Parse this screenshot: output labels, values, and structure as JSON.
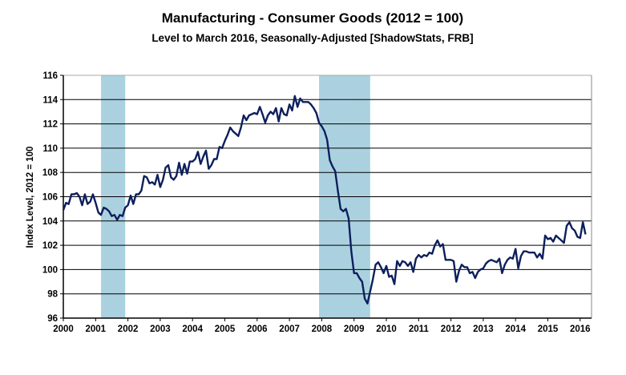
{
  "chart_data": {
    "type": "line",
    "title": "Manufacturing - Consumer Goods (2012 = 100)",
    "subtitle": "Level to March 2016, Seasonally-Adjusted [ShadowStats, FRB]",
    "xlabel": "",
    "ylabel": "Index Level, 2012 = 100",
    "xlim": [
      2000,
      2016.35
    ],
    "ylim": [
      96,
      116
    ],
    "x_ticks": [
      "2000",
      "2001",
      "2002",
      "2003",
      "2004",
      "2005",
      "2006",
      "2007",
      "2008",
      "2009",
      "2010",
      "2011",
      "2012",
      "2013",
      "2014",
      "2015",
      "2016"
    ],
    "y_ticks": [
      "96",
      "98",
      "100",
      "102",
      "104",
      "106",
      "108",
      "110",
      "112",
      "114",
      "116"
    ],
    "grid": "horizontal",
    "line_color": "#0d1f5c",
    "recession_color": "#a6d4dc",
    "recessions": [
      [
        "2001-03",
        "2001-11"
      ],
      [
        "2007-12",
        "2009-06"
      ]
    ],
    "series": [
      {
        "year": 2000,
        "monthly": [
          104.9,
          105.5,
          105.4,
          106.2,
          106.2,
          106.3,
          106.0,
          105.3,
          106.2,
          105.4,
          105.6,
          106.2
        ]
      },
      {
        "year": 2001,
        "monthly": [
          105.5,
          104.7,
          104.5,
          105.1,
          105.0,
          104.8,
          104.4,
          104.5,
          104.1,
          104.5,
          104.4,
          105.1
        ]
      },
      {
        "year": 2002,
        "monthly": [
          105.3,
          106.1,
          105.4,
          106.2,
          106.2,
          106.5,
          107.7,
          107.6,
          107.1,
          107.2,
          107.0,
          107.8
        ]
      },
      {
        "year": 2003,
        "monthly": [
          106.8,
          107.4,
          108.4,
          108.6,
          107.6,
          107.4,
          107.7,
          108.8,
          107.8,
          108.7,
          107.9,
          108.9
        ]
      },
      {
        "year": 2004,
        "monthly": [
          108.9,
          109.1,
          109.7,
          108.7,
          109.3,
          109.8,
          108.3,
          108.6,
          109.1,
          109.1,
          110.1,
          110.0
        ]
      },
      {
        "year": 2005,
        "monthly": [
          110.6,
          111.1,
          111.7,
          111.4,
          111.2,
          111.0,
          111.7,
          112.7,
          112.3,
          112.7,
          112.8,
          112.9
        ]
      },
      {
        "year": 2006,
        "monthly": [
          112.8,
          113.4,
          112.8,
          112.1,
          112.7,
          113.0,
          112.8,
          113.3,
          112.2,
          113.3,
          112.8,
          112.7
        ]
      },
      {
        "year": 2007,
        "monthly": [
          113.6,
          113.1,
          114.3,
          113.4,
          114.1,
          113.8,
          113.8,
          113.8,
          113.6,
          113.3,
          112.9,
          112.1
        ]
      },
      {
        "year": 2008,
        "monthly": [
          111.8,
          111.4,
          110.7,
          109.0,
          108.5,
          108.1,
          106.5,
          105.0,
          104.8,
          105.0,
          104.2,
          101.5
        ]
      },
      {
        "year": 2009,
        "monthly": [
          99.7,
          99.7,
          99.3,
          99.0,
          97.6,
          97.2,
          98.2,
          99.2,
          100.4,
          100.6,
          100.2,
          99.7
        ]
      },
      {
        "year": 2010,
        "monthly": [
          100.3,
          99.4,
          99.5,
          98.8,
          100.7,
          100.3,
          100.7,
          100.6,
          100.3,
          100.6,
          99.8,
          100.9
        ]
      },
      {
        "year": 2011,
        "monthly": [
          101.2,
          101.0,
          101.2,
          101.1,
          101.4,
          101.3,
          102.0,
          102.4,
          101.9,
          102.1,
          100.8,
          100.8
        ]
      },
      {
        "year": 2012,
        "monthly": [
          100.8,
          100.7,
          99.0,
          99.9,
          100.4,
          100.2,
          100.2,
          99.7,
          99.8,
          99.3,
          99.8,
          100.0
        ]
      },
      {
        "year": 2013,
        "monthly": [
          100.1,
          100.5,
          100.7,
          100.8,
          100.7,
          100.6,
          100.9,
          99.7,
          100.4,
          100.8,
          101.0,
          100.9
        ]
      },
      {
        "year": 2014,
        "monthly": [
          101.7,
          100.1,
          101.1,
          101.5,
          101.5,
          101.4,
          101.4,
          101.4,
          101.0,
          101.3,
          100.9,
          102.8
        ]
      },
      {
        "year": 2015,
        "monthly": [
          102.5,
          102.6,
          102.3,
          102.8,
          102.6,
          102.4,
          102.2,
          103.6,
          103.9,
          103.4,
          103.2,
          102.7
        ]
      },
      {
        "year": 2016,
        "monthly": [
          102.6,
          103.9,
          102.9
        ]
      }
    ]
  }
}
